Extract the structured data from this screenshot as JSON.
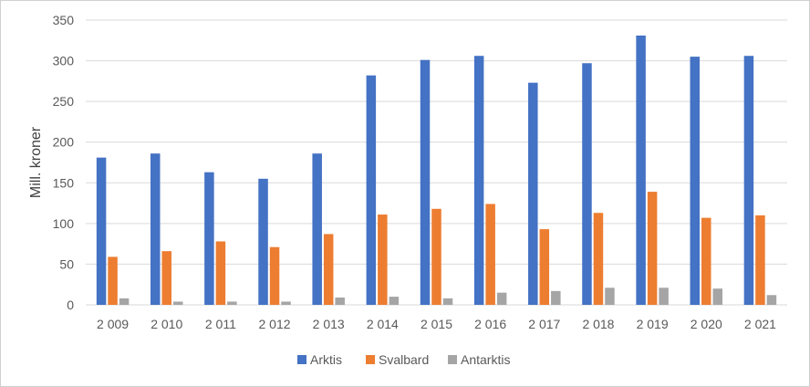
{
  "chart_data": {
    "type": "bar",
    "title": "",
    "xlabel": "",
    "ylabel": "Mill. kroner",
    "ylim": [
      0,
      350
    ],
    "yticks": [
      0,
      50,
      100,
      150,
      200,
      250,
      300,
      350
    ],
    "grid": true,
    "legend_position": "bottom",
    "categories": [
      "2 009",
      "2 010",
      "2 011",
      "2 012",
      "2 013",
      "2 014",
      "2 015",
      "2 016",
      "2 017",
      "2 018",
      "2 019",
      "2 020",
      "2 021"
    ],
    "series": [
      {
        "name": "Arktis",
        "color": "#4472C4",
        "values": [
          181,
          186,
          163,
          155,
          186,
          282,
          301,
          306,
          273,
          297,
          331,
          305,
          306
        ]
      },
      {
        "name": "Svalbard",
        "color": "#ED7D31",
        "values": [
          59,
          66,
          78,
          71,
          87,
          111,
          118,
          124,
          93,
          113,
          139,
          107,
          110
        ]
      },
      {
        "name": "Antarktis",
        "color": "#A5A5A5",
        "values": [
          8,
          4,
          4,
          4,
          9,
          10,
          8,
          15,
          17,
          21,
          21,
          20,
          12
        ]
      }
    ]
  }
}
